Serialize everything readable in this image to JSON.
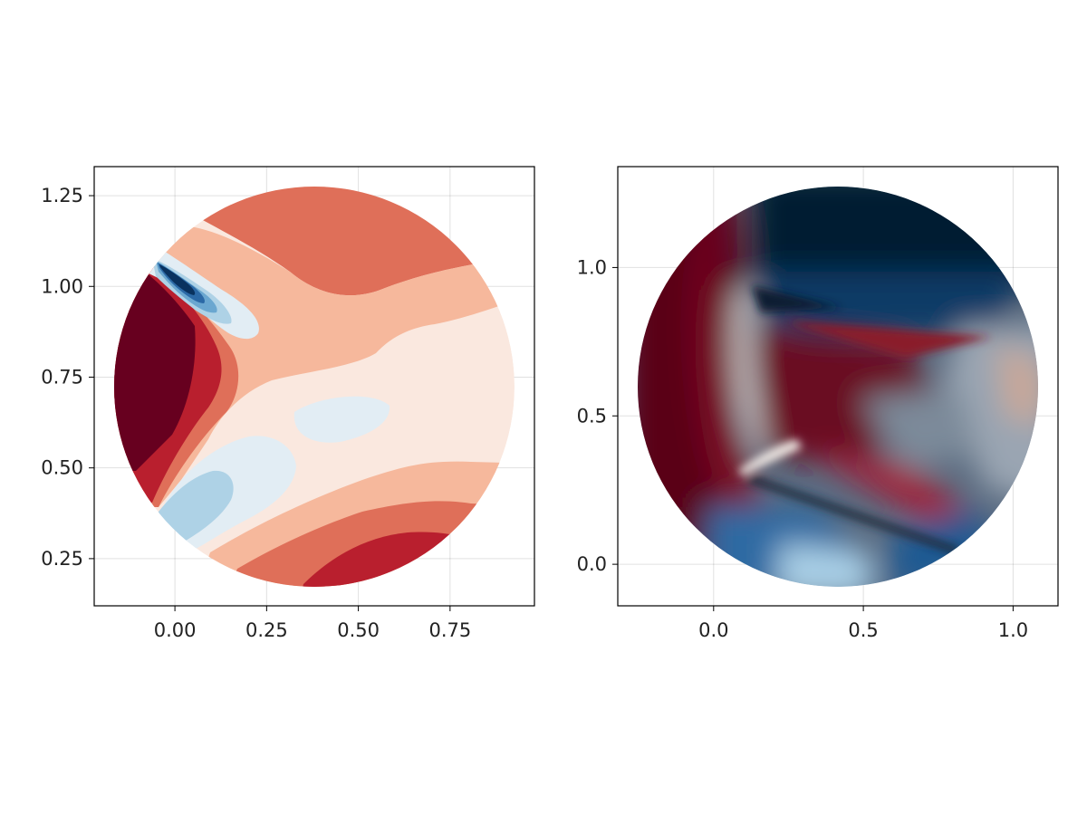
{
  "chart_data": [
    {
      "type": "heatmap",
      "subtype": "filled-contour",
      "domain_shape": "disk",
      "disk": {
        "center": [
          0.375,
          0.725
        ],
        "radius": 0.55
      },
      "xlim": [
        -0.22,
        0.98
      ],
      "ylim": [
        0.12,
        1.33
      ],
      "xticks": [
        0.0,
        0.25,
        0.5,
        0.75
      ],
      "xtick_labels": [
        "0.00",
        "0.25",
        "0.50",
        "0.75"
      ],
      "yticks": [
        0.25,
        0.5,
        0.75,
        1.0,
        1.25
      ],
      "ytick_labels": [
        "0.25",
        "0.50",
        "0.75",
        "1.00",
        "1.25"
      ],
      "colormap": "RdBu reversed",
      "level_colors": [
        "#09325f",
        "#2b69a6",
        "#6aa7d0",
        "#aed2e6",
        "#e2edf4",
        "#fae8df",
        "#f6b89c",
        "#df6f59",
        "#b91f2e",
        "#67001f"
      ],
      "grid": true
    },
    {
      "type": "heatmap",
      "subtype": "interpolated-surface",
      "domain_shape": "disk",
      "disk": {
        "center": [
          0.5,
          0.6
        ],
        "radius": 0.67
      },
      "xlim": [
        -0.32,
        1.15
      ],
      "ylim": [
        -0.14,
        1.34
      ],
      "xticks": [
        0.0,
        0.5,
        1.0
      ],
      "xtick_labels": [
        "0.0",
        "0.5",
        "1.0"
      ],
      "yticks": [
        0.0,
        0.5,
        1.0
      ],
      "ytick_labels": [
        "0.0",
        "0.5",
        "1.0"
      ],
      "colormap": "RdBu reversed",
      "grid": true
    }
  ],
  "colors": {
    "dark_red": "#67001f",
    "red": "#b91f2e",
    "salmon": "#df6f59",
    "peach": "#f6b89c",
    "cream": "#fae8df",
    "pale_blue": "#e2edf4",
    "light_blue": "#aed2e6",
    "mid_blue": "#6aa7d0",
    "blue": "#2b69a6",
    "dark_blue": "#09325f",
    "navy": "#061a33"
  }
}
